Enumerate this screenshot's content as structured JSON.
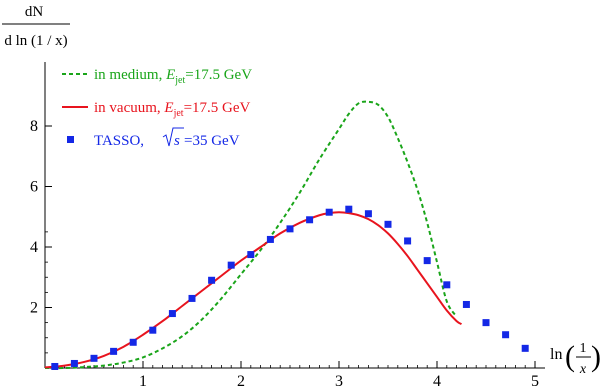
{
  "chart_data": {
    "type": "line",
    "ylabel": {
      "numerator": "dN",
      "denominator": "d ln (1 / x)"
    },
    "xlabel": {
      "prefix": "ln",
      "numerator": "1",
      "denominator": "x"
    },
    "xlim": [
      0,
      5
    ],
    "ylim": [
      0,
      9
    ],
    "x_ticks": [
      "1",
      "2",
      "3",
      "4",
      "5"
    ],
    "y_ticks": [
      "2",
      "4",
      "6",
      "8"
    ],
    "grid": false,
    "legend": {
      "placement": "top-left",
      "entries": [
        {
          "text_pre": "in medium, ",
          "symbol": "E",
          "subscript": "jet",
          "text_post": "=17.5 GeV",
          "color": "#1aa51a",
          "style": "dashed"
        },
        {
          "text_pre": "in vacuum, ",
          "symbol": "E",
          "subscript": "jet",
          "text_post": "=17.5 GeV",
          "color": "#e8141e",
          "style": "solid"
        },
        {
          "text_pre": "TASSO, ",
          "sqrt": "s",
          "text_post": "=35 GeV",
          "color": "#1428e6",
          "style": "marker"
        }
      ]
    },
    "series": [
      {
        "name": "in medium, Ejet=17.5 GeV",
        "color": "#1aa51a",
        "style": "dashed",
        "x": [
          0.0,
          0.2,
          0.4,
          0.6,
          0.8,
          1.0,
          1.2,
          1.4,
          1.6,
          1.8,
          2.0,
          2.2,
          2.4,
          2.6,
          2.8,
          3.0,
          3.1,
          3.2,
          3.3,
          3.4,
          3.5,
          3.6,
          3.7,
          3.8,
          3.9,
          4.0,
          4.1,
          4.2
        ],
        "y": [
          0.0,
          0.0,
          0.03,
          0.08,
          0.18,
          0.35,
          0.65,
          1.05,
          1.6,
          2.3,
          3.1,
          3.9,
          4.8,
          5.8,
          6.9,
          7.9,
          8.4,
          8.75,
          8.8,
          8.7,
          8.3,
          7.6,
          6.8,
          5.9,
          4.8,
          3.5,
          2.2,
          1.7
        ]
      },
      {
        "name": "in vacuum, Ejet=17.5 GeV",
        "color": "#e8141e",
        "style": "solid",
        "x": [
          0.0,
          0.2,
          0.4,
          0.6,
          0.8,
          1.0,
          1.2,
          1.4,
          1.6,
          1.8,
          2.0,
          2.2,
          2.4,
          2.6,
          2.8,
          2.9,
          3.0,
          3.1,
          3.2,
          3.3,
          3.4,
          3.5,
          3.6,
          3.7,
          3.8,
          3.9,
          4.0,
          4.1,
          4.2,
          4.25
        ],
        "y": [
          0.02,
          0.08,
          0.2,
          0.4,
          0.7,
          1.1,
          1.55,
          2.05,
          2.55,
          3.05,
          3.55,
          4.0,
          4.45,
          4.8,
          5.05,
          5.12,
          5.15,
          5.12,
          5.05,
          4.92,
          4.72,
          4.45,
          4.1,
          3.7,
          3.25,
          2.8,
          2.35,
          1.9,
          1.55,
          1.45
        ]
      },
      {
        "name": "TASSO, √s=35 GeV",
        "color": "#1428e6",
        "style": "marker",
        "x": [
          0.1,
          0.3,
          0.5,
          0.7,
          0.9,
          1.1,
          1.3,
          1.5,
          1.7,
          1.9,
          2.1,
          2.3,
          2.5,
          2.7,
          2.9,
          3.1,
          3.3,
          3.5,
          3.7,
          3.9,
          4.1,
          4.3,
          4.5,
          4.7,
          4.9
        ],
        "y": [
          0.05,
          0.15,
          0.32,
          0.55,
          0.85,
          1.25,
          1.8,
          2.3,
          2.9,
          3.4,
          3.75,
          4.25,
          4.6,
          4.9,
          5.15,
          5.25,
          5.1,
          4.75,
          4.2,
          3.55,
          2.75,
          2.1,
          1.5,
          1.1,
          0.65
        ]
      }
    ]
  }
}
